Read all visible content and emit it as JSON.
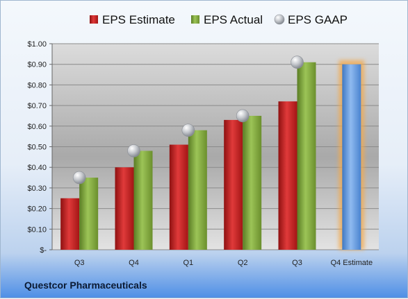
{
  "company_name": "Questcor Pharmaceuticals",
  "colors": {
    "estimate": "#cc1f1f",
    "actual": "#7aa33a",
    "gaap": "#b8bcc4",
    "forecast": "#5b96dd",
    "forecast_glow": "#f3a94b"
  },
  "chart_data": {
    "type": "bar",
    "categories": [
      "Q3",
      "Q4",
      "Q1",
      "Q2",
      "Q3",
      "Q4 Estimate"
    ],
    "series": [
      {
        "name": "EPS Estimate",
        "values": [
          0.25,
          0.4,
          0.51,
          0.63,
          0.72,
          null
        ]
      },
      {
        "name": "EPS Actual",
        "values": [
          0.35,
          0.48,
          0.58,
          0.65,
          0.91,
          null
        ]
      },
      {
        "name": "EPS GAAP",
        "values": [
          0.35,
          0.48,
          0.58,
          0.65,
          0.91,
          null
        ]
      }
    ],
    "forecast": {
      "category": "Q4 Estimate",
      "value": 0.9
    },
    "ylim": [
      0,
      1.0
    ],
    "yticks": [
      0,
      0.1,
      0.2,
      0.3,
      0.4,
      0.5,
      0.6,
      0.7,
      0.8,
      0.9,
      1.0
    ],
    "ytick_labels": [
      "$-",
      "$0.10",
      "$0.20",
      "$0.30",
      "$0.40",
      "$0.50",
      "$0.60",
      "$0.70",
      "$0.80",
      "$0.90",
      "$1.00"
    ],
    "legend": {
      "position": "top",
      "items": [
        {
          "label": "EPS Estimate",
          "marker": "bar",
          "color": "#cc1f1f"
        },
        {
          "label": "EPS Actual",
          "marker": "bar",
          "color": "#7aa33a"
        },
        {
          "label": "EPS GAAP",
          "marker": "sphere",
          "color": "#b8bcc4"
        }
      ]
    },
    "grid": true
  }
}
